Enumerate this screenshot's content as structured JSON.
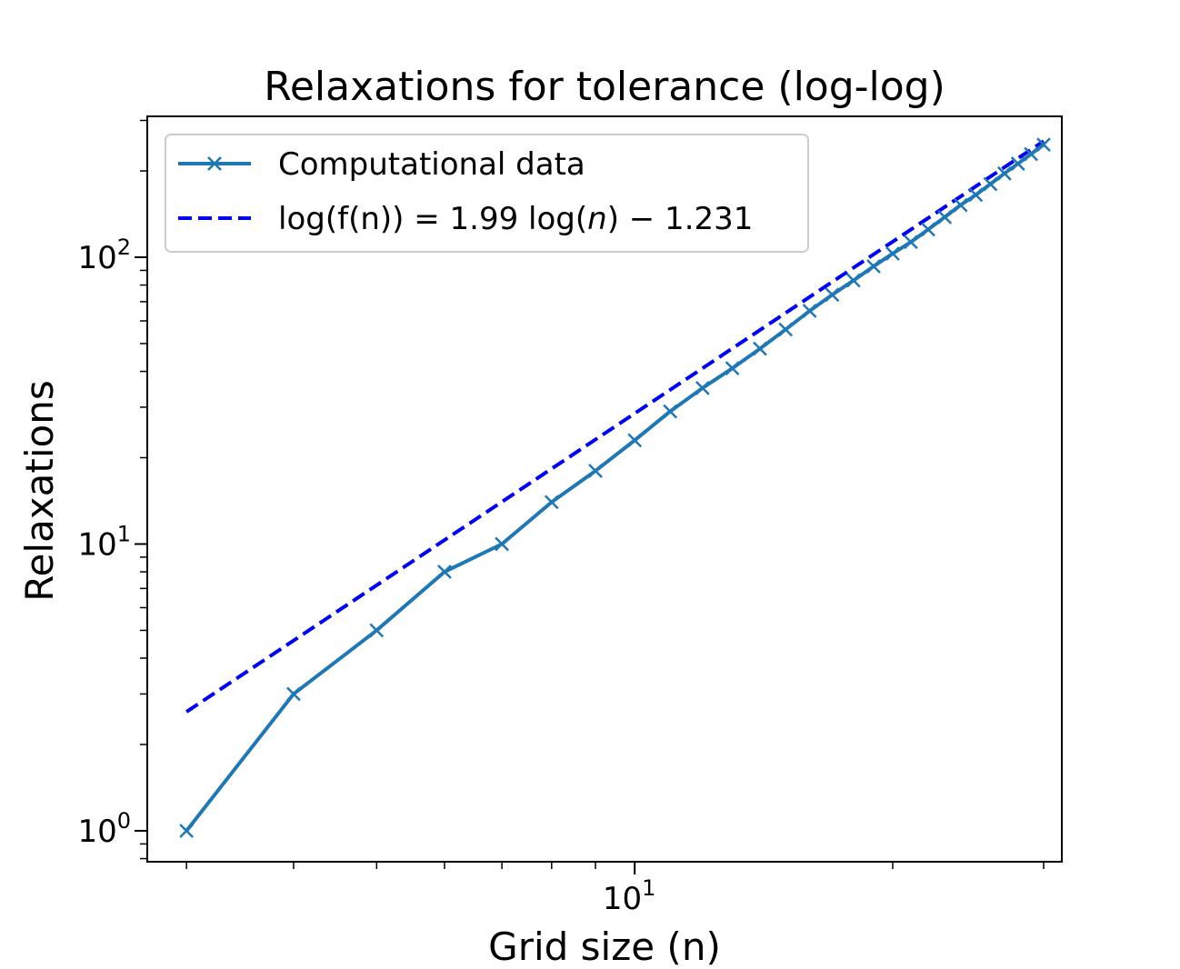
{
  "chart_data": {
    "type": "line",
    "title": "Relaxations for tolerance (log-log)",
    "xlabel": "Grid size (n)",
    "ylabel": "Relaxations",
    "xscale": "log",
    "yscale": "log",
    "xlim": [
      2.7,
      31.5
    ],
    "ylim": [
      0.78,
      310
    ],
    "legend_position": "top-left",
    "xticks": [
      {
        "base": "10",
        "exp": "1",
        "value": 10
      }
    ],
    "yticks": [
      {
        "base": "10",
        "exp": "0",
        "value": 1
      },
      {
        "base": "10",
        "exp": "1",
        "value": 10
      },
      {
        "base": "10",
        "exp": "2",
        "value": 100
      }
    ],
    "series": [
      {
        "name": "Computational data",
        "style": "solid",
        "marker": "x",
        "color": "#1f77b4",
        "x": [
          3,
          4,
          5,
          6,
          7,
          8,
          9,
          10,
          11,
          12,
          13,
          14,
          15,
          16,
          17,
          18,
          19,
          20,
          21,
          22,
          23,
          24,
          25,
          26,
          27,
          28,
          29,
          30
        ],
        "y": [
          1,
          3,
          5,
          8,
          10,
          14,
          18,
          23,
          29,
          35,
          41,
          48,
          56,
          65,
          74,
          83,
          93,
          103,
          113,
          125,
          138,
          152,
          165,
          180,
          196,
          212,
          229,
          247
        ]
      },
      {
        "name": "log(f(n)) = 1.99 log(n) − 1.231",
        "name_parts": [
          "log(f(n)) = 1.99 log(",
          "n",
          ") − 1.231"
        ],
        "style": "dashed",
        "color": "#0000ee",
        "fit": {
          "slope": 1.99,
          "intercept": -1.231,
          "x_range": [
            3,
            30
          ]
        }
      }
    ]
  }
}
